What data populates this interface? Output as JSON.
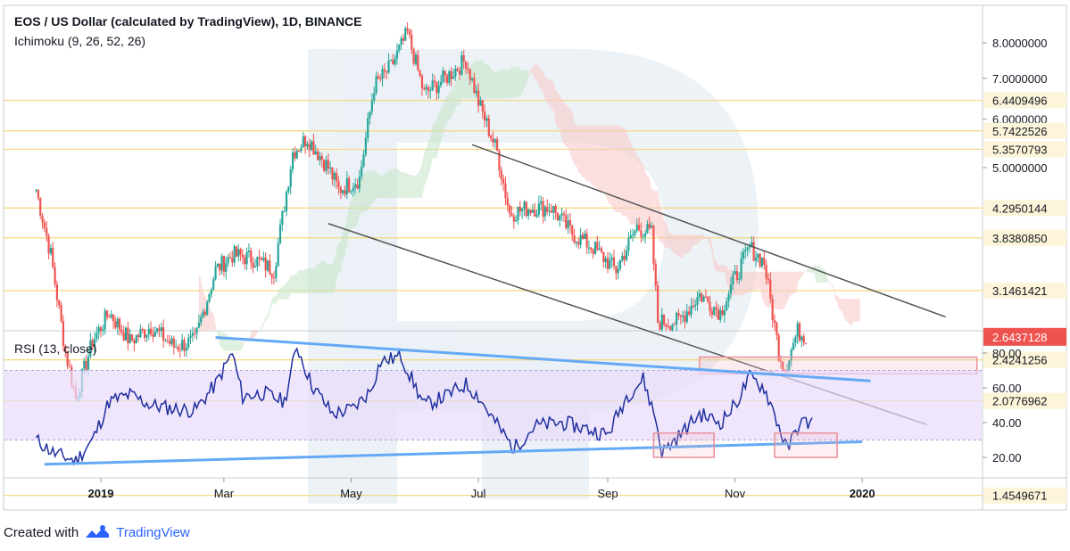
{
  "header": {
    "title": "EOS / US Dollar (calculated by TradingView), 1D, BINANCE",
    "indicator": "Ichimoku (9, 26, 52, 26)"
  },
  "rsi_panel": {
    "label": "RSI (13, close)"
  },
  "footer": {
    "created_with": "Created with",
    "brand": "TradingView"
  },
  "colors": {
    "up": "#26a69a",
    "down": "#ef5350",
    "level_line": "#f5d67a",
    "current_price_tag": "#ef5350",
    "level_tag": "#fdf5d9",
    "trendline": "#555555",
    "rsi_line": "#1f2f9f",
    "rsi_band": "#e9dcfb",
    "rsi_trendline": "#64a9f5",
    "box": "#e8919a",
    "watermark": "#dce7ef"
  },
  "chart_data": [
    {
      "type": "candlestick",
      "title": "EOS / US Dollar (calculated by TradingView), 1D, BINANCE",
      "x_tick_labels": [
        "2019",
        "Mar",
        "May",
        "Jul",
        "Sep",
        "Nov",
        "2020"
      ],
      "y_tick_labels": [
        "8.0000000",
        "7.0000000",
        "6.0000000",
        "5.0000000"
      ],
      "y_scale": "log",
      "price_levels": [
        6.4409496,
        5.7422526,
        5.3570793,
        4.2950144,
        3.838085,
        3.1461421,
        2.4241256,
        2.0776962,
        1.4549671
      ],
      "current_price": 2.6437128,
      "close_path": [
        [
          "2018-12-01",
          4.6
        ],
        [
          "2018-12-08",
          3.6
        ],
        [
          "2018-12-15",
          2.5
        ],
        [
          "2018-12-20",
          2.1
        ],
        [
          "2018-12-28",
          2.6
        ],
        [
          "2019-01-05",
          2.9
        ],
        [
          "2019-01-15",
          2.6
        ],
        [
          "2019-01-25",
          2.75
        ],
        [
          "2019-02-05",
          2.55
        ],
        [
          "2019-02-15",
          2.6
        ],
        [
          "2019-02-25",
          3.4
        ],
        [
          "2019-03-05",
          3.6
        ],
        [
          "2019-03-15",
          3.55
        ],
        [
          "2019-03-25",
          3.4
        ],
        [
          "2019-04-03",
          5.3
        ],
        [
          "2019-04-10",
          5.6
        ],
        [
          "2019-04-20",
          5.0
        ],
        [
          "2019-04-25",
          4.6
        ],
        [
          "2019-05-05",
          4.8
        ],
        [
          "2019-05-12",
          6.8
        ],
        [
          "2019-05-20",
          7.3
        ],
        [
          "2019-05-28",
          8.3
        ],
        [
          "2019-06-05",
          6.6
        ],
        [
          "2019-06-15",
          7.0
        ],
        [
          "2019-06-25",
          7.5
        ],
        [
          "2019-07-01",
          6.4
        ],
        [
          "2019-07-10",
          5.3
        ],
        [
          "2019-07-16",
          4.2
        ],
        [
          "2019-07-25",
          4.3
        ],
        [
          "2019-08-05",
          4.3
        ],
        [
          "2019-08-15",
          3.9
        ],
        [
          "2019-08-25",
          3.7
        ],
        [
          "2019-09-05",
          3.4
        ],
        [
          "2019-09-15",
          4.0
        ],
        [
          "2019-09-22",
          3.9
        ],
        [
          "2019-09-25",
          2.8
        ],
        [
          "2019-10-05",
          2.8
        ],
        [
          "2019-10-15",
          3.1
        ],
        [
          "2019-10-25",
          2.9
        ],
        [
          "2019-11-01",
          3.3
        ],
        [
          "2019-11-08",
          3.7
        ],
        [
          "2019-11-15",
          3.5
        ],
        [
          "2019-11-22",
          2.5
        ],
        [
          "2019-11-25",
          2.35
        ],
        [
          "2019-12-01",
          2.7
        ],
        [
          "2019-12-05",
          2.65
        ]
      ],
      "trendlines": [
        {
          "from": [
            "2019-06-28",
            5.45
          ],
          "to": [
            "2020-02-10",
            2.85
          ]
        },
        {
          "from": [
            "2019-04-20",
            4.05
          ],
          "to": [
            "2020-02-01",
            1.9
          ]
        }
      ],
      "target_zone": {
        "from_date": "2019-10-15",
        "to_date": "2020-02-25",
        "low": 2.3,
        "high": 2.45
      }
    },
    {
      "type": "line",
      "title": "RSI (13, close)",
      "y_tick_labels": [
        "80.00",
        "60.00",
        "40.00",
        "20.00"
      ],
      "ylim": [
        10,
        90
      ],
      "band": [
        30,
        70
      ],
      "series": [
        {
          "name": "RSI (13, close)",
          "points": [
            [
              "2018-12-01",
              30
            ],
            [
              "2018-12-10",
              22
            ],
            [
              "2018-12-20",
              18
            ],
            [
              "2018-12-28",
              30
            ],
            [
              "2019-01-05",
              52
            ],
            [
              "2019-01-15",
              56
            ],
            [
              "2019-01-25",
              50
            ],
            [
              "2019-02-05",
              48
            ],
            [
              "2019-02-15",
              47
            ],
            [
              "2019-02-25",
              62
            ],
            [
              "2019-03-05",
              80
            ],
            [
              "2019-03-10",
              55
            ],
            [
              "2019-03-20",
              57
            ],
            [
              "2019-03-30",
              52
            ],
            [
              "2019-04-05",
              84
            ],
            [
              "2019-04-12",
              62
            ],
            [
              "2019-04-22",
              45
            ],
            [
              "2019-05-02",
              48
            ],
            [
              "2019-05-10",
              58
            ],
            [
              "2019-05-15",
              75
            ],
            [
              "2019-05-25",
              78
            ],
            [
              "2019-06-05",
              50
            ],
            [
              "2019-06-15",
              55
            ],
            [
              "2019-06-25",
              62
            ],
            [
              "2019-07-01",
              55
            ],
            [
              "2019-07-08",
              42
            ],
            [
              "2019-07-18",
              25
            ],
            [
              "2019-07-28",
              38
            ],
            [
              "2019-08-10",
              40
            ],
            [
              "2019-08-20",
              37
            ],
            [
              "2019-09-01",
              33
            ],
            [
              "2019-09-10",
              55
            ],
            [
              "2019-09-18",
              65
            ],
            [
              "2019-09-24",
              42
            ],
            [
              "2019-09-27",
              23
            ],
            [
              "2019-10-05",
              32
            ],
            [
              "2019-10-15",
              45
            ],
            [
              "2019-10-25",
              40
            ],
            [
              "2019-11-01",
              50
            ],
            [
              "2019-11-08",
              66
            ],
            [
              "2019-11-15",
              60
            ],
            [
              "2019-11-20",
              45
            ],
            [
              "2019-11-26",
              24
            ],
            [
              "2019-12-02",
              40
            ],
            [
              "2019-12-08",
              40
            ]
          ]
        }
      ],
      "trendlines": [
        {
          "from": [
            "2019-02-25",
            89
          ],
          "to": [
            "2020-01-05",
            64
          ]
        },
        {
          "from": [
            "2018-12-05",
            16
          ],
          "to": [
            "2020-01-01",
            29
          ]
        }
      ],
      "boxes": [
        {
          "from_date": "2019-09-23",
          "to_date": "2019-10-22",
          "low": 20,
          "high": 34
        },
        {
          "from_date": "2019-11-20",
          "to_date": "2019-12-20",
          "low": 20,
          "high": 34
        }
      ]
    }
  ]
}
